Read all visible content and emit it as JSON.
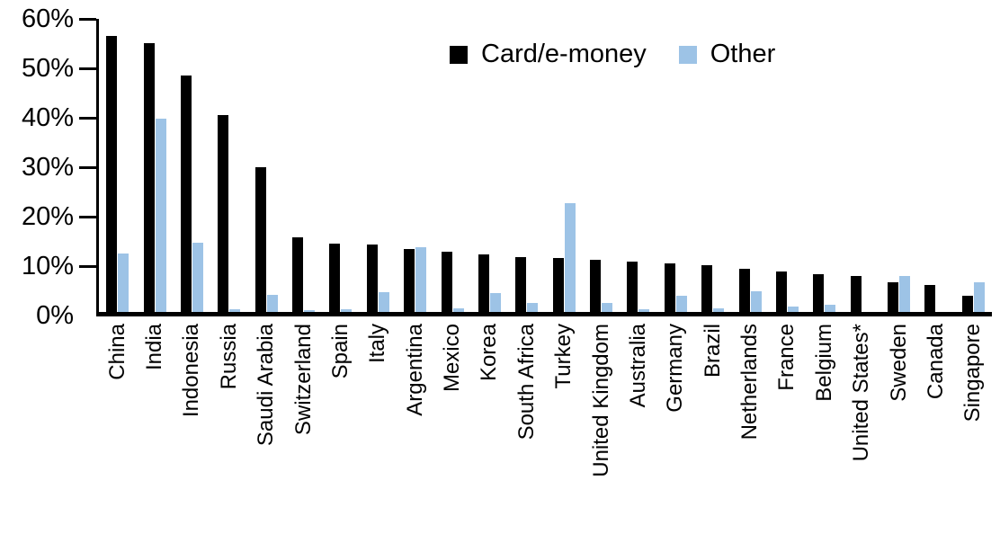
{
  "chart_data": {
    "type": "bar",
    "title": "",
    "xlabel": "",
    "ylabel": "",
    "ylim": [
      0,
      60
    ],
    "ytick_step": 10,
    "ytick_labels": [
      "0%",
      "10%",
      "20%",
      "30%",
      "40%",
      "50%",
      "60%"
    ],
    "grid": false,
    "legend_position": "top-center",
    "categories": [
      "China",
      "India",
      "Indonesia",
      "Russia",
      "Saudi Arabia",
      "Switzerland",
      "Spain",
      "Italy",
      "Argentina",
      "Mexico",
      "Korea",
      "South Africa",
      "Turkey",
      "United Kingdom",
      "Australia",
      "Germany",
      "Brazil",
      "Netherlands",
      "France",
      "Belgium",
      "United States*",
      "Sweden",
      "Canada",
      "Singapore"
    ],
    "series": [
      {
        "name": "Card/e-money",
        "color": "#000000",
        "values": [
          56.3,
          55.0,
          48.3,
          40.4,
          29.8,
          15.6,
          14.3,
          14.1,
          13.2,
          12.8,
          12.1,
          11.6,
          11.4,
          11.1,
          10.7,
          10.4,
          10.0,
          9.2,
          8.7,
          8.2,
          7.9,
          6.6,
          6.0,
          3.9
        ]
      },
      {
        "name": "Other",
        "color": "#9DC3E6",
        "values": [
          12.3,
          39.7,
          14.5,
          1.1,
          4.0,
          0.9,
          1.1,
          4.6,
          13.7,
          1.3,
          4.4,
          2.4,
          22.5,
          2.3,
          1.1,
          3.9,
          1.2,
          4.8,
          1.6,
          2.0,
          0.3,
          7.9,
          0.0,
          6.6
        ]
      }
    ]
  },
  "legend": {
    "card_label": "Card/e-money",
    "other_label": "Other"
  },
  "colors": {
    "card": "#000000",
    "other": "#9DC3E6",
    "axis": "#000000",
    "background": "#FFFFFF"
  }
}
